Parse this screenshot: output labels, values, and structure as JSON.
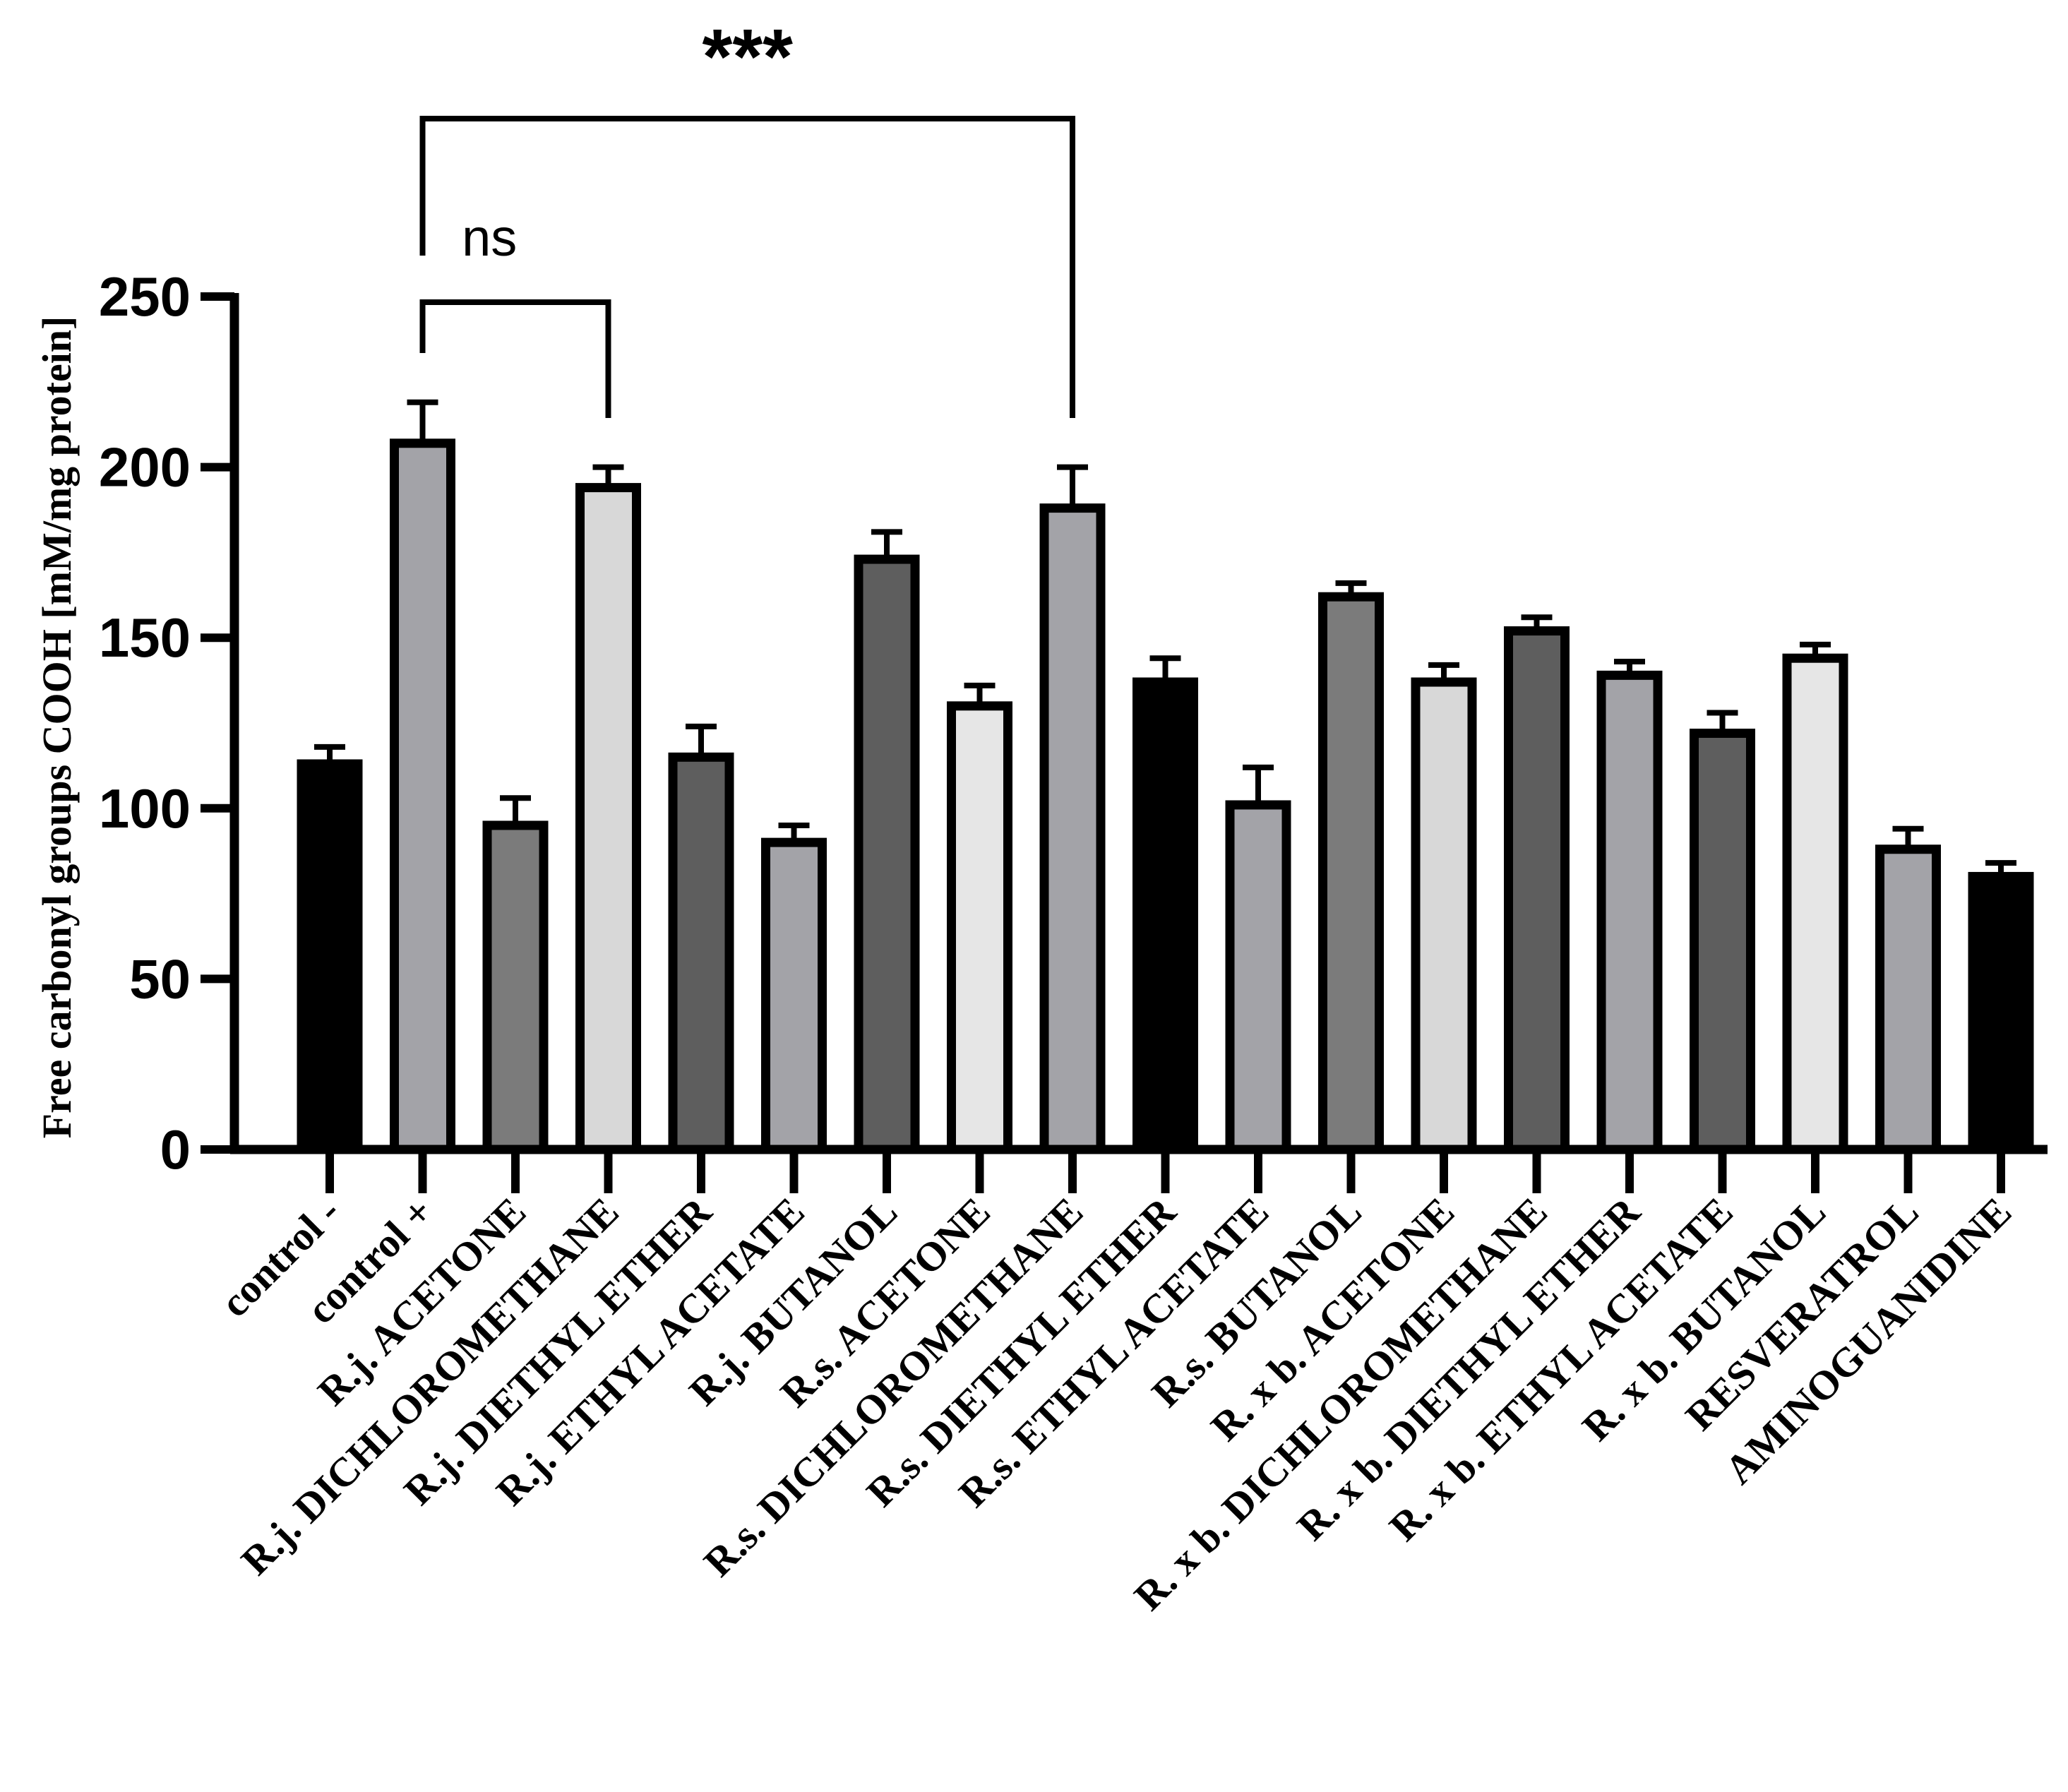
{
  "chart_data": {
    "type": "bar",
    "title": "",
    "xlabel": "",
    "ylabel": "Free carbonyl groups COOH [mM/mg protein]",
    "ylim": [
      0,
      250
    ],
    "yticks": [
      0,
      50,
      100,
      150,
      200,
      250
    ],
    "categories": [
      "control -",
      "control +",
      "R.j. ACETONE",
      "R.j. DICHLOROMETHANE",
      "R.j. DIETHYL ETHER",
      "R.j. ETHYL ACETATE",
      "R.j. BUTANOL",
      "R.s. ACETONE",
      "R.s. DICHLOROMETHANE",
      "R.s. DIETHYL ETHER",
      "R.s. ETHYL ACETATE",
      "R.s. BUTANOL",
      "R. x b. ACETONE",
      "R. x b. DICHLOROMETHANE",
      "R. x b.  DIETHYL ETHER",
      "R. x b.  ETHYL ACETATE",
      "R. x b. BUTANOL",
      "RESVERATROL",
      "AMINOGUANIDINE"
    ],
    "values": [
      113,
      207,
      95,
      194,
      115,
      90,
      173,
      130,
      188,
      137,
      101,
      162,
      137,
      152,
      139,
      122,
      144,
      88,
      80
    ],
    "errors": [
      5,
      12,
      8,
      6,
      9,
      5,
      8,
      6,
      12,
      7,
      11,
      4,
      5,
      4,
      4,
      6,
      4,
      6,
      4
    ],
    "bar_colors": [
      "#000000",
      "#a3a3a8",
      "#7b7b7b",
      "#d8d8d8",
      "#5e5e5e",
      "#a3a3a8",
      "#5e5e5e",
      "#e6e6e6",
      "#a3a3a8",
      "#000000",
      "#a3a3a8",
      "#7b7b7b",
      "#d8d8d8",
      "#5e5e5e",
      "#a3a3a8",
      "#5e5e5e",
      "#e6e6e6",
      "#a3a3a8",
      "#000000"
    ],
    "significance": [
      {
        "from": 1,
        "to": 3,
        "label": "ns"
      },
      {
        "from": 1,
        "to": 8,
        "label": "***"
      }
    ]
  }
}
